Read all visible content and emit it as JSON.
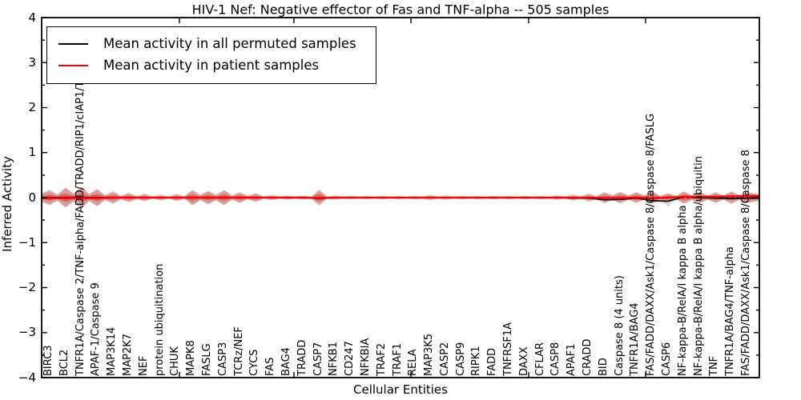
{
  "chart_data": {
    "type": "area",
    "title": "HIV-1 Nef: Negative effector of Fas and TNF-alpha -- 505 samples",
    "xlabel": "Cellular Entities",
    "ylabel": "Inferred Activity",
    "ylim": [
      -4,
      4
    ],
    "ytick_labels": [
      "4",
      "3",
      "2",
      "1",
      "0",
      "−1",
      "−2",
      "−3",
      "−4"
    ],
    "grid": false,
    "legend_position": "upper left",
    "zero_line": 0,
    "categories": [
      "BIRC3",
      "BCL2",
      "TNFR1A/Caspase 2/TNF-alpha/FADD/TRADD/RIP1/cIAP1/TRAF2",
      "APAF-1/Caspase 9",
      "MAP3K14",
      "MAP2K7",
      "NEF",
      "protein ubiquitination",
      "CHUK",
      "MAPK8",
      "FASLG",
      "CASP3",
      "TCRz/NEF",
      "CYCS",
      "FAS",
      "BAG4",
      "TRADD",
      "CASP7",
      "NFKB1",
      "CD247",
      "NFKBIA",
      "TRAF2",
      "TRAF1",
      "RELA",
      "MAP3K5",
      "CASP2",
      "CASP9",
      "RIPK1",
      "FADD",
      "TNFRSF1A",
      "DAXX",
      "CFLAR",
      "CASP8",
      "APAF1",
      "CRADD",
      "BID",
      "Caspase 8 (4 units)",
      "TNFR1A/BAG4",
      "FAS/FADD/DAXX/Ask1/Caspase 8/Caspase 8/FASLG",
      "CASP6",
      "NF-kappa-B/RelA/I kappa B alpha",
      "NF-kappa-B/RelA/I kappa B alpha/ubiquitin",
      "TNF",
      "TNFR1A/BAG4/TNF-alpha",
      "FAS/FADD/DAXX/Ask1/Caspase 8/Caspase 8"
    ],
    "series": [
      {
        "name": "Mean activity in all permuted samples",
        "color": "#000000",
        "values": [
          0,
          0,
          0,
          0,
          0,
          0,
          0,
          0,
          0,
          0,
          0,
          0,
          0,
          0,
          0,
          0,
          0,
          -0.02,
          0,
          0,
          0,
          0,
          0,
          0,
          0,
          0,
          0,
          0,
          0,
          0,
          0,
          0,
          0,
          -0.01,
          -0.01,
          -0.05,
          -0.04,
          -0.01,
          -0.07,
          -0.08,
          0.02,
          0,
          -0.01,
          -0.02,
          -0.01
        ]
      },
      {
        "name": "Mean activity in patient samples",
        "color": "#ff0000",
        "values": [
          -0.01,
          -0.01,
          -0.01,
          -0.01,
          0,
          0,
          0,
          0,
          0,
          0,
          0,
          0,
          0,
          0,
          0,
          0,
          0,
          -0.01,
          0,
          0,
          0,
          0,
          0,
          0,
          0,
          0,
          0,
          0,
          0,
          0,
          0,
          0,
          0,
          0,
          0,
          -0.01,
          -0.01,
          0,
          -0.02,
          0,
          0.02,
          0.02,
          0.02,
          0.03,
          0.04
        ]
      }
    ],
    "bands": {
      "patient": {
        "color": "#e03030",
        "up": [
          0.15,
          0.21,
          0.23,
          0.18,
          0.12,
          0.09,
          0.07,
          0.05,
          0.07,
          0.16,
          0.14,
          0.16,
          0.11,
          0.09,
          0.05,
          0.04,
          0.04,
          0.18,
          0.04,
          0.03,
          0.03,
          0.03,
          0.03,
          0.03,
          0.04,
          0.03,
          0.03,
          0.03,
          0.03,
          0.03,
          0.03,
          0.03,
          0.04,
          0.05,
          0.07,
          0.11,
          0.12,
          0.11,
          0.14,
          0.09,
          0.14,
          0.12,
          0.11,
          0.14,
          0.12
        ],
        "down": [
          0.15,
          0.21,
          0.23,
          0.18,
          0.12,
          0.09,
          0.07,
          0.05,
          0.07,
          0.16,
          0.14,
          0.16,
          0.11,
          0.09,
          0.05,
          0.04,
          0.04,
          0.18,
          0.04,
          0.03,
          0.03,
          0.03,
          0.03,
          0.03,
          0.04,
          0.03,
          0.03,
          0.03,
          0.03,
          0.03,
          0.03,
          0.03,
          0.04,
          0.05,
          0.07,
          0.11,
          0.12,
          0.11,
          0.14,
          0.09,
          0.14,
          0.12,
          0.11,
          0.14,
          0.12
        ]
      },
      "permuted": {
        "color": "#888888",
        "up": [
          0.18,
          0.23,
          0.25,
          0.2,
          0.15,
          0.11,
          0.09,
          0.07,
          0.08,
          0.17,
          0.15,
          0.17,
          0.12,
          0.1,
          0.06,
          0.05,
          0.05,
          0.14,
          0.05,
          0.04,
          0.04,
          0.04,
          0.04,
          0.04,
          0.07,
          0.06,
          0.04,
          0.04,
          0.04,
          0.04,
          0.04,
          0.04,
          0.06,
          0.08,
          0.1,
          0.13,
          0.13,
          0.12,
          0.13,
          0.1,
          0.12,
          0.13,
          0.12,
          0.12,
          0.12
        ],
        "down": [
          0.18,
          0.23,
          0.25,
          0.2,
          0.15,
          0.11,
          0.09,
          0.07,
          0.08,
          0.17,
          0.15,
          0.17,
          0.12,
          0.1,
          0.06,
          0.05,
          0.05,
          0.14,
          0.05,
          0.04,
          0.04,
          0.04,
          0.04,
          0.04,
          0.07,
          0.06,
          0.04,
          0.04,
          0.04,
          0.04,
          0.04,
          0.04,
          0.06,
          0.08,
          0.1,
          0.14,
          0.14,
          0.12,
          0.13,
          0.2,
          0.12,
          0.13,
          0.12,
          0.12,
          0.12
        ]
      }
    }
  },
  "legend": {
    "items": [
      {
        "label": "Mean activity in all permuted samples",
        "color": "#000000"
      },
      {
        "label": "Mean activity in patient samples",
        "color": "#ff0000"
      }
    ]
  }
}
